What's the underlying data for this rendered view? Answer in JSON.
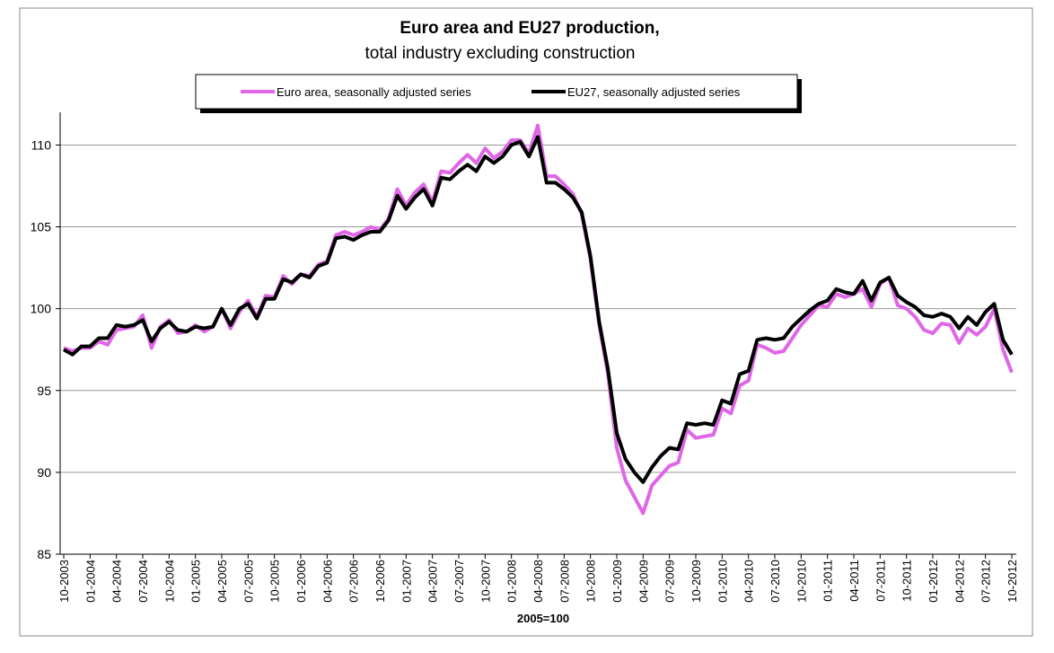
{
  "chart_data": {
    "type": "line",
    "title": "Euro area and EU27 production,",
    "subtitle": "total industry excluding construction",
    "x_label": "2005=100",
    "categories": [
      "10-2003",
      null,
      null,
      "01-2004",
      null,
      null,
      "04-2004",
      null,
      null,
      "07-2004",
      null,
      null,
      "10-2004",
      null,
      null,
      "01-2005",
      null,
      null,
      "04-2005",
      null,
      null,
      "07-2005",
      null,
      null,
      "10-2005",
      null,
      null,
      "01-2006",
      null,
      null,
      "04-2006",
      null,
      null,
      "07-2006",
      null,
      null,
      "10-2006",
      null,
      null,
      "01-2007",
      null,
      null,
      "04-2007",
      null,
      null,
      "07-2007",
      null,
      null,
      "10-2007",
      null,
      null,
      "01-2008",
      null,
      null,
      "04-2008",
      null,
      null,
      "07-2008",
      null,
      null,
      "10-2008",
      null,
      null,
      "01-2009",
      null,
      null,
      "04-2009",
      null,
      null,
      "07-2009",
      null,
      null,
      "10-2009",
      null,
      null,
      "01-2010",
      null,
      null,
      "04-2010",
      null,
      null,
      "07-2010",
      null,
      null,
      "10-2010",
      null,
      null,
      "01-2011",
      null,
      null,
      "04-2011",
      null,
      null,
      "07-2011",
      null,
      null,
      "10-2011",
      null,
      null,
      "01-2012",
      null,
      null,
      "04-2012",
      null,
      null,
      "07-2012",
      null,
      null,
      "10-2012"
    ],
    "series": [
      {
        "name": "Euro area, seasonally adjusted series",
        "color": "#e066e8",
        "values": [
          97.6,
          97.4,
          97.6,
          97.6,
          98.0,
          97.8,
          98.7,
          98.8,
          98.9,
          99.6,
          97.6,
          98.9,
          99.3,
          98.5,
          98.6,
          99.0,
          98.6,
          98.9,
          100.0,
          98.8,
          99.8,
          100.5,
          99.5,
          100.8,
          100.7,
          102.0,
          101.5,
          102.1,
          102.0,
          102.7,
          102.9,
          104.5,
          104.7,
          104.5,
          104.7,
          105.0,
          104.8,
          105.5,
          107.3,
          106.3,
          107.1,
          107.6,
          106.5,
          108.4,
          108.3,
          108.9,
          109.4,
          108.9,
          109.8,
          109.2,
          109.6,
          110.3,
          110.3,
          109.5,
          111.2,
          108.1,
          108.1,
          107.6,
          107.0,
          105.8,
          103.0,
          99.0,
          96.0,
          91.5,
          89.5,
          88.5,
          87.5,
          89.2,
          89.8,
          90.4,
          90.6,
          92.6,
          92.1,
          92.2,
          92.3,
          93.9,
          93.6,
          95.3,
          95.6,
          97.8,
          97.6,
          97.3,
          97.4,
          98.2,
          99.0,
          99.6,
          100.2,
          100.1,
          100.9,
          100.7,
          100.9,
          101.2,
          100.1,
          101.5,
          101.9,
          100.2,
          100.0,
          99.5,
          98.7,
          98.5,
          99.1,
          99.0,
          97.9,
          98.8,
          98.4,
          98.9,
          100.0,
          97.5,
          96.1
        ]
      },
      {
        "name": "EU27, seasonally adjusted series",
        "color": "#000000",
        "values": [
          97.5,
          97.2,
          97.7,
          97.7,
          98.2,
          98.2,
          99.0,
          98.9,
          99.0,
          99.3,
          98.0,
          98.8,
          99.2,
          98.7,
          98.6,
          98.9,
          98.8,
          98.9,
          100.0,
          99.0,
          100.0,
          100.3,
          99.4,
          100.6,
          100.6,
          101.8,
          101.6,
          102.1,
          101.9,
          102.6,
          102.8,
          104.3,
          104.4,
          104.2,
          104.5,
          104.7,
          104.7,
          105.4,
          106.9,
          106.1,
          106.8,
          107.3,
          106.3,
          108.0,
          107.9,
          108.4,
          108.8,
          108.4,
          109.3,
          108.9,
          109.3,
          110.0,
          110.2,
          109.3,
          110.5,
          107.7,
          107.7,
          107.3,
          106.8,
          105.9,
          103.2,
          99.2,
          96.3,
          92.4,
          90.8,
          90.0,
          89.4,
          90.3,
          91.0,
          91.5,
          91.4,
          93.0,
          92.9,
          93.0,
          92.9,
          94.4,
          94.2,
          96.0,
          96.2,
          98.1,
          98.2,
          98.1,
          98.2,
          98.9,
          99.4,
          99.9,
          100.3,
          100.5,
          101.2,
          101.0,
          100.9,
          101.7,
          100.5,
          101.6,
          101.9,
          100.8,
          100.4,
          100.1,
          99.6,
          99.5,
          99.7,
          99.5,
          98.8,
          99.5,
          99.0,
          99.8,
          100.3,
          98.1,
          97.2
        ]
      }
    ],
    "ylim": [
      85,
      112
    ],
    "yticks": [
      85,
      90,
      95,
      100,
      105,
      110
    ],
    "grid": true,
    "legend": "top"
  }
}
